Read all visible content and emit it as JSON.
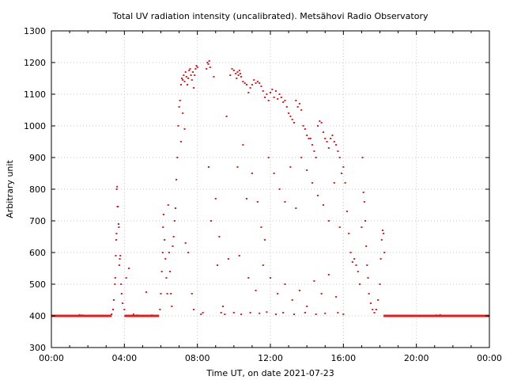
{
  "chart_data": {
    "type": "scatter",
    "title": "Total UV radiation intensity (uncalibrated). Metsähovi Radio Observatory",
    "xlabel": "Time UT, on date 2021-07-23",
    "ylabel": "Arbitrary unit",
    "xlim": [
      0,
      24
    ],
    "ylim": [
      300,
      1300
    ],
    "x_ticks": [
      {
        "value": 0,
        "label": "00:00"
      },
      {
        "value": 4,
        "label": "04:00"
      },
      {
        "value": 8,
        "label": "08:00"
      },
      {
        "value": 12,
        "label": "12:00"
      },
      {
        "value": 16,
        "label": "16:00"
      },
      {
        "value": 20,
        "label": "20:00"
      },
      {
        "value": 24,
        "label": "00:00"
      }
    ],
    "y_ticks": [
      300,
      400,
      500,
      600,
      700,
      800,
      900,
      1000,
      1100,
      1200,
      1300
    ],
    "grid": true,
    "color": "#e41a1c",
    "series": [
      {
        "name": "UV intensity",
        "baseline_segments": [
          {
            "x_start": 0.0,
            "x_end": 3.3,
            "y": 400
          },
          {
            "x_start": 4.0,
            "x_end": 5.9,
            "y": 400
          },
          {
            "x_start": 18.2,
            "x_end": 24.0,
            "y": 400
          }
        ],
        "points": [
          [
            1.55,
            403
          ],
          [
            1.7,
            402
          ],
          [
            3.3,
            405
          ],
          [
            3.38,
            420
          ],
          [
            3.42,
            450
          ],
          [
            3.48,
            500
          ],
          [
            3.5,
            520
          ],
          [
            3.53,
            590
          ],
          [
            3.55,
            640
          ],
          [
            3.57,
            660
          ],
          [
            3.58,
            800
          ],
          [
            3.6,
            808
          ],
          [
            3.62,
            745
          ],
          [
            3.65,
            745
          ],
          [
            3.68,
            690
          ],
          [
            3.7,
            680
          ],
          [
            3.72,
            560
          ],
          [
            3.75,
            580
          ],
          [
            3.78,
            590
          ],
          [
            3.82,
            500
          ],
          [
            3.85,
            470
          ],
          [
            3.9,
            440
          ],
          [
            4.0,
            420
          ],
          [
            4.1,
            520
          ],
          [
            4.25,
            550
          ],
          [
            4.5,
            405
          ],
          [
            4.7,
            402
          ],
          [
            5.2,
            475
          ],
          [
            5.5,
            402
          ],
          [
            5.95,
            420
          ],
          [
            6.0,
            470
          ],
          [
            6.05,
            540
          ],
          [
            6.1,
            600
          ],
          [
            6.12,
            680
          ],
          [
            6.15,
            720
          ],
          [
            6.2,
            640
          ],
          [
            6.25,
            580
          ],
          [
            6.3,
            520
          ],
          [
            6.35,
            470
          ],
          [
            6.4,
            750
          ],
          [
            6.45,
            600
          ],
          [
            6.5,
            540
          ],
          [
            6.55,
            470
          ],
          [
            6.6,
            430
          ],
          [
            6.65,
            620
          ],
          [
            6.7,
            650
          ],
          [
            6.75,
            700
          ],
          [
            6.8,
            740
          ],
          [
            6.85,
            830
          ],
          [
            6.9,
            900
          ],
          [
            6.95,
            1000
          ],
          [
            7.0,
            1060
          ],
          [
            7.05,
            1080
          ],
          [
            7.1,
            1130
          ],
          [
            7.15,
            1150
          ],
          [
            7.2,
            1145
          ],
          [
            7.25,
            1160
          ],
          [
            7.3,
            1140
          ],
          [
            7.35,
            1170
          ],
          [
            7.4,
            1155
          ],
          [
            7.45,
            1130
          ],
          [
            7.5,
            1150
          ],
          [
            7.55,
            1175
          ],
          [
            7.6,
            1180
          ],
          [
            7.65,
            1160
          ],
          [
            7.7,
            1145
          ],
          [
            7.75,
            1170
          ],
          [
            7.8,
            1120
          ],
          [
            7.85,
            1160
          ],
          [
            7.9,
            1180
          ],
          [
            7.95,
            1190
          ],
          [
            8.0,
            1185
          ],
          [
            7.1,
            950
          ],
          [
            7.2,
            1040
          ],
          [
            7.3,
            990
          ],
          [
            7.35,
            630
          ],
          [
            7.5,
            600
          ],
          [
            7.7,
            470
          ],
          [
            7.8,
            420
          ],
          [
            8.2,
            405
          ],
          [
            8.3,
            410
          ],
          [
            8.5,
            1180
          ],
          [
            8.55,
            1200
          ],
          [
            8.6,
            1195
          ],
          [
            8.65,
            1205
          ],
          [
            8.7,
            1185
          ],
          [
            8.62,
            870
          ],
          [
            8.75,
            700
          ],
          [
            8.9,
            1155
          ],
          [
            9.0,
            770
          ],
          [
            9.1,
            560
          ],
          [
            9.2,
            650
          ],
          [
            9.3,
            410
          ],
          [
            9.4,
            430
          ],
          [
            9.5,
            405
          ],
          [
            9.6,
            1030
          ],
          [
            9.7,
            580
          ],
          [
            9.8,
            1160
          ],
          [
            9.9,
            1180
          ],
          [
            10.0,
            1175
          ],
          [
            10.1,
            1165
          ],
          [
            10.15,
            1150
          ],
          [
            10.2,
            1170
          ],
          [
            10.25,
            1160
          ],
          [
            10.3,
            1175
          ],
          [
            10.35,
            1165
          ],
          [
            10.4,
            1155
          ],
          [
            10.5,
            1140
          ],
          [
            10.6,
            1135
          ],
          [
            10.7,
            1130
          ],
          [
            10.8,
            1105
          ],
          [
            10.9,
            1120
          ],
          [
            11.0,
            1130
          ],
          [
            11.1,
            1145
          ],
          [
            11.2,
            1135
          ],
          [
            11.3,
            1140
          ],
          [
            11.4,
            1135
          ],
          [
            11.5,
            1125
          ],
          [
            11.6,
            1110
          ],
          [
            11.7,
            1090
          ],
          [
            11.8,
            1100
          ],
          [
            11.9,
            1080
          ],
          [
            12.0,
            1105
          ],
          [
            12.1,
            1115
          ],
          [
            12.2,
            1090
          ],
          [
            12.3,
            1110
          ],
          [
            12.4,
            1085
          ],
          [
            12.5,
            1100
          ],
          [
            12.6,
            1090
          ],
          [
            12.7,
            1075
          ],
          [
            12.8,
            1080
          ],
          [
            12.9,
            1060
          ],
          [
            13.0,
            1040
          ],
          [
            13.1,
            1030
          ],
          [
            13.2,
            1020
          ],
          [
            13.3,
            1010
          ],
          [
            13.4,
            1080
          ],
          [
            13.5,
            1060
          ],
          [
            13.6,
            1070
          ],
          [
            13.7,
            1050
          ],
          [
            13.8,
            1000
          ],
          [
            13.9,
            990
          ],
          [
            14.0,
            970
          ],
          [
            14.1,
            960
          ],
          [
            14.2,
            960
          ],
          [
            14.3,
            940
          ],
          [
            14.4,
            920
          ],
          [
            14.5,
            900
          ],
          [
            14.6,
            1000
          ],
          [
            14.7,
            1015
          ],
          [
            14.8,
            1010
          ],
          [
            14.9,
            980
          ],
          [
            15.0,
            960
          ],
          [
            15.1,
            950
          ],
          [
            15.2,
            930
          ],
          [
            15.3,
            960
          ],
          [
            15.4,
            970
          ],
          [
            15.5,
            950
          ],
          [
            15.6,
            940
          ],
          [
            15.7,
            920
          ],
          [
            15.8,
            900
          ],
          [
            15.9,
            850
          ],
          [
            10.2,
            870
          ],
          [
            10.5,
            940
          ],
          [
            10.7,
            770
          ],
          [
            11.0,
            850
          ],
          [
            11.3,
            760
          ],
          [
            11.5,
            680
          ],
          [
            11.7,
            640
          ],
          [
            11.9,
            900
          ],
          [
            12.2,
            850
          ],
          [
            12.5,
            800
          ],
          [
            12.8,
            760
          ],
          [
            13.1,
            870
          ],
          [
            13.4,
            740
          ],
          [
            13.7,
            900
          ],
          [
            14.0,
            860
          ],
          [
            14.3,
            820
          ],
          [
            14.6,
            780
          ],
          [
            14.9,
            750
          ],
          [
            15.2,
            700
          ],
          [
            15.5,
            820
          ],
          [
            15.8,
            680
          ],
          [
            10.3,
            590
          ],
          [
            10.8,
            520
          ],
          [
            11.2,
            480
          ],
          [
            11.6,
            560
          ],
          [
            12.0,
            520
          ],
          [
            12.4,
            470
          ],
          [
            12.8,
            500
          ],
          [
            13.2,
            450
          ],
          [
            13.6,
            480
          ],
          [
            14.0,
            430
          ],
          [
            14.4,
            510
          ],
          [
            14.8,
            470
          ],
          [
            15.2,
            530
          ],
          [
            15.6,
            460
          ],
          [
            10.0,
            410
          ],
          [
            10.4,
            405
          ],
          [
            10.9,
            410
          ],
          [
            11.4,
            408
          ],
          [
            11.8,
            412
          ],
          [
            12.3,
            405
          ],
          [
            12.7,
            410
          ],
          [
            13.3,
            405
          ],
          [
            13.9,
            410
          ],
          [
            14.5,
            405
          ],
          [
            15.0,
            408
          ],
          [
            15.7,
            410
          ],
          [
            16.0,
            405
          ],
          [
            16.0,
            870
          ],
          [
            16.1,
            820
          ],
          [
            16.2,
            730
          ],
          [
            16.3,
            660
          ],
          [
            16.4,
            600
          ],
          [
            16.5,
            570
          ],
          [
            16.6,
            580
          ],
          [
            16.7,
            560
          ],
          [
            16.8,
            540
          ],
          [
            16.9,
            500
          ],
          [
            17.0,
            680
          ],
          [
            17.05,
            900
          ],
          [
            17.1,
            790
          ],
          [
            17.15,
            760
          ],
          [
            17.2,
            700
          ],
          [
            17.25,
            620
          ],
          [
            17.3,
            560
          ],
          [
            17.35,
            520
          ],
          [
            17.4,
            470
          ],
          [
            17.5,
            440
          ],
          [
            17.6,
            420
          ],
          [
            17.7,
            410
          ],
          [
            17.8,
            420
          ],
          [
            17.9,
            450
          ],
          [
            18.0,
            500
          ],
          [
            18.05,
            580
          ],
          [
            18.1,
            640
          ],
          [
            18.15,
            670
          ],
          [
            18.2,
            660
          ],
          [
            18.25,
            600
          ],
          [
            21.1,
            402
          ],
          [
            21.3,
            403
          ]
        ]
      }
    ]
  }
}
